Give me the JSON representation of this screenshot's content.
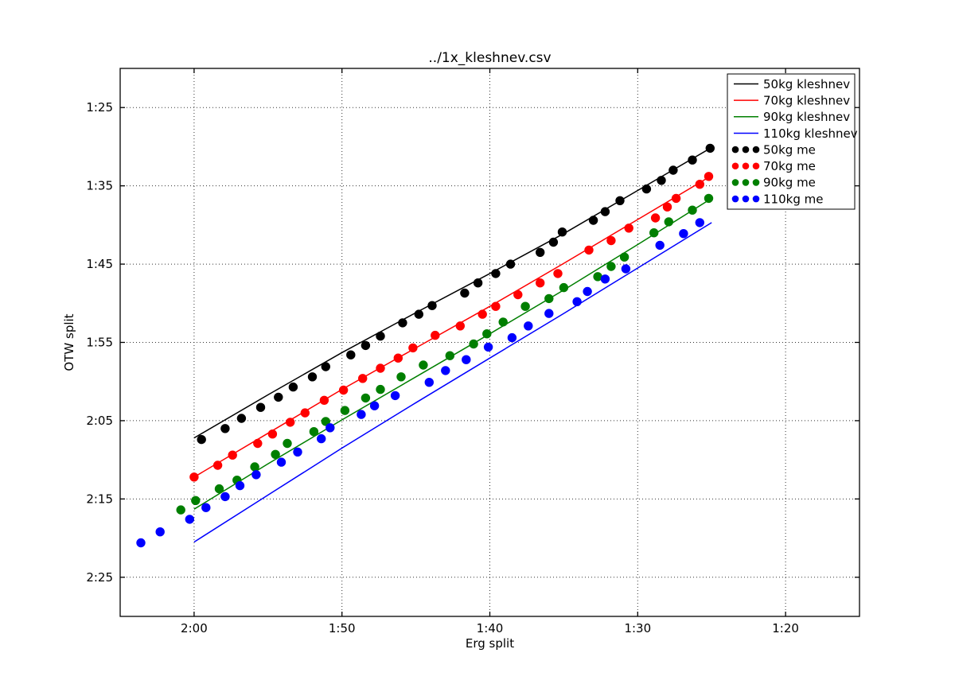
{
  "figure": {
    "background": "#ffffff"
  },
  "chart_data": {
    "type": "line+scatter",
    "title": "../1x_kleshnev.csv",
    "xlabel": "Erg split",
    "ylabel": "OTW split",
    "x_axis": {
      "min": 75,
      "max": 125,
      "reversed": true,
      "ticks": [
        {
          "v": 120,
          "label": "2:00"
        },
        {
          "v": 110,
          "label": "1:50"
        },
        {
          "v": 100,
          "label": "1:40"
        },
        {
          "v": 90,
          "label": "1:30"
        },
        {
          "v": 80,
          "label": "1:20"
        }
      ]
    },
    "y_axis": {
      "min": 80,
      "max": 150,
      "inverted": true,
      "ticks": [
        {
          "v": 85,
          "label": "1:25"
        },
        {
          "v": 95,
          "label": "1:35"
        },
        {
          "v": 105,
          "label": "1:45"
        },
        {
          "v": 115,
          "label": "1:55"
        },
        {
          "v": 125,
          "label": "2:05"
        },
        {
          "v": 135,
          "label": "2:15"
        },
        {
          "v": 145,
          "label": "2:25"
        }
      ]
    },
    "grid": {
      "visible": true,
      "style": "dotted",
      "color": "#333333"
    },
    "legend": {
      "position": "upper right",
      "marker_points": 3
    },
    "series": [
      {
        "name": "50kg kleshnev",
        "type": "line",
        "color": "#000000",
        "points": [
          [
            120,
            127.2
          ],
          [
            115,
            121.7
          ],
          [
            110,
            116.3
          ],
          [
            105,
            111.2
          ],
          [
            100,
            106.2
          ],
          [
            95,
            101.1
          ],
          [
            90,
            95.6
          ],
          [
            85,
            90.1
          ]
        ]
      },
      {
        "name": "70kg kleshnev",
        "type": "line",
        "color": "#ff0000",
        "points": [
          [
            120,
            132.2
          ],
          [
            115,
            126.6
          ],
          [
            110,
            121.0
          ],
          [
            105,
            115.7
          ],
          [
            100,
            110.4
          ],
          [
            95,
            104.9
          ],
          [
            90,
            99.3
          ],
          [
            85,
            93.7
          ]
        ]
      },
      {
        "name": "90kg kleshnev",
        "type": "line",
        "color": "#007f00",
        "points": [
          [
            120,
            136.3
          ],
          [
            115,
            130.5
          ],
          [
            110,
            124.9
          ],
          [
            105,
            119.4
          ],
          [
            100,
            113.9
          ],
          [
            95,
            108.3
          ],
          [
            90,
            102.5
          ],
          [
            85,
            96.6
          ]
        ]
      },
      {
        "name": "110kg kleshnev",
        "type": "line",
        "color": "#0000ff",
        "points": [
          [
            120,
            140.5
          ],
          [
            115,
            134.5
          ],
          [
            110,
            128.5
          ],
          [
            105,
            122.7
          ],
          [
            100,
            117.0
          ],
          [
            95,
            111.3
          ],
          [
            90,
            105.5
          ],
          [
            85,
            99.7
          ]
        ]
      },
      {
        "name": "50kg me",
        "type": "scatter",
        "color": "#000000",
        "points": [
          [
            119.5,
            127.4
          ],
          [
            117.9,
            126.0
          ],
          [
            116.8,
            124.7
          ],
          [
            115.5,
            123.3
          ],
          [
            114.3,
            122.0
          ],
          [
            113.3,
            120.7
          ],
          [
            112.0,
            119.4
          ],
          [
            111.1,
            118.1
          ],
          [
            109.4,
            116.6
          ],
          [
            108.4,
            115.4
          ],
          [
            107.4,
            114.2
          ],
          [
            105.9,
            112.5
          ],
          [
            104.8,
            111.4
          ],
          [
            103.9,
            110.3
          ],
          [
            101.7,
            108.7
          ],
          [
            100.8,
            107.4
          ],
          [
            99.6,
            106.2
          ],
          [
            98.6,
            105.0
          ],
          [
            96.6,
            103.5
          ],
          [
            95.7,
            102.2
          ],
          [
            95.1,
            100.9
          ],
          [
            93.0,
            99.4
          ],
          [
            92.2,
            98.3
          ],
          [
            91.2,
            96.9
          ],
          [
            89.4,
            95.4
          ],
          [
            88.4,
            94.3
          ],
          [
            87.6,
            93.0
          ],
          [
            86.3,
            91.7
          ],
          [
            85.1,
            90.2
          ]
        ]
      },
      {
        "name": "70kg me",
        "type": "scatter",
        "color": "#ff0000",
        "points": [
          [
            120.0,
            132.2
          ],
          [
            118.4,
            130.7
          ],
          [
            117.4,
            129.4
          ],
          [
            115.7,
            127.9
          ],
          [
            114.7,
            126.7
          ],
          [
            113.5,
            125.2
          ],
          [
            112.5,
            124.0
          ],
          [
            111.2,
            122.4
          ],
          [
            109.9,
            121.1
          ],
          [
            108.6,
            119.6
          ],
          [
            107.4,
            118.3
          ],
          [
            106.2,
            117.0
          ],
          [
            105.2,
            115.7
          ],
          [
            103.7,
            114.1
          ],
          [
            102.0,
            112.9
          ],
          [
            100.5,
            111.4
          ],
          [
            99.6,
            110.4
          ],
          [
            98.1,
            108.9
          ],
          [
            96.6,
            107.4
          ],
          [
            95.4,
            106.2
          ],
          [
            93.3,
            103.2
          ],
          [
            91.8,
            102.0
          ],
          [
            90.6,
            100.4
          ],
          [
            88.8,
            99.1
          ],
          [
            88.0,
            97.7
          ],
          [
            87.4,
            96.6
          ],
          [
            85.8,
            94.8
          ],
          [
            85.2,
            93.8
          ]
        ]
      },
      {
        "name": "90kg me",
        "type": "scatter",
        "color": "#007f00",
        "points": [
          [
            120.9,
            136.4
          ],
          [
            119.9,
            135.2
          ],
          [
            118.3,
            133.7
          ],
          [
            117.1,
            132.6
          ],
          [
            115.9,
            130.9
          ],
          [
            114.5,
            129.3
          ],
          [
            113.7,
            127.9
          ],
          [
            111.9,
            126.4
          ],
          [
            111.1,
            125.1
          ],
          [
            109.8,
            123.7
          ],
          [
            108.4,
            122.1
          ],
          [
            107.4,
            121.0
          ],
          [
            106.0,
            119.4
          ],
          [
            104.5,
            117.9
          ],
          [
            102.7,
            116.7
          ],
          [
            101.1,
            115.2
          ],
          [
            100.2,
            113.9
          ],
          [
            99.1,
            112.4
          ],
          [
            97.6,
            110.4
          ],
          [
            96.0,
            109.4
          ],
          [
            95.0,
            108.0
          ],
          [
            92.7,
            106.6
          ],
          [
            91.8,
            105.3
          ],
          [
            90.9,
            104.1
          ],
          [
            88.9,
            101.0
          ],
          [
            87.9,
            99.6
          ],
          [
            86.3,
            98.1
          ],
          [
            85.2,
            96.6
          ]
        ]
      },
      {
        "name": "110kg me",
        "type": "scatter",
        "color": "#0000ff",
        "points": [
          [
            123.6,
            140.6
          ],
          [
            122.3,
            139.2
          ],
          [
            120.3,
            137.6
          ],
          [
            119.2,
            136.1
          ],
          [
            117.9,
            134.7
          ],
          [
            116.9,
            133.3
          ],
          [
            115.8,
            131.9
          ],
          [
            114.1,
            130.3
          ],
          [
            113.0,
            129.0
          ],
          [
            111.4,
            127.3
          ],
          [
            110.8,
            125.9
          ],
          [
            108.7,
            124.2
          ],
          [
            107.8,
            123.1
          ],
          [
            106.4,
            121.8
          ],
          [
            104.1,
            120.1
          ],
          [
            103.0,
            118.6
          ],
          [
            101.6,
            117.2
          ],
          [
            100.1,
            115.6
          ],
          [
            98.5,
            114.4
          ],
          [
            97.4,
            112.9
          ],
          [
            96.0,
            111.3
          ],
          [
            94.1,
            109.8
          ],
          [
            93.4,
            108.5
          ],
          [
            92.2,
            106.9
          ],
          [
            90.8,
            105.6
          ],
          [
            88.5,
            102.6
          ],
          [
            86.9,
            101.1
          ],
          [
            85.8,
            99.7
          ]
        ]
      }
    ]
  }
}
